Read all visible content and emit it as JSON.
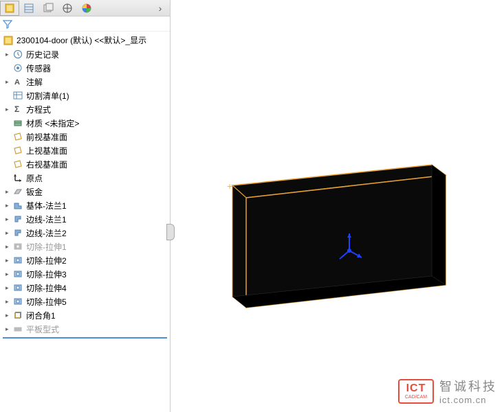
{
  "root": {
    "label": "2300104-door (默认) <<默认>_显示"
  },
  "items": [
    {
      "label": "历史记录",
      "icon": "history",
      "expandable": true
    },
    {
      "label": "传感器",
      "icon": "sensor",
      "expandable": false
    },
    {
      "label": "注解",
      "icon": "annotation",
      "expandable": true
    },
    {
      "label": "切割清单(1)",
      "icon": "cutlist",
      "expandable": false
    },
    {
      "label": "方程式",
      "icon": "equation",
      "expandable": true
    },
    {
      "label": "材质 <未指定>",
      "icon": "material",
      "expandable": false
    },
    {
      "label": "前视基准面",
      "icon": "plane",
      "expandable": false
    },
    {
      "label": "上视基准面",
      "icon": "plane",
      "expandable": false
    },
    {
      "label": "右视基准面",
      "icon": "plane",
      "expandable": false
    },
    {
      "label": "原点",
      "icon": "origin",
      "expandable": false
    },
    {
      "label": "钣金",
      "icon": "sheetmetal",
      "expandable": true
    },
    {
      "label": "基体-法兰1",
      "icon": "baseflange",
      "expandable": true
    },
    {
      "label": "边线-法兰1",
      "icon": "edgeflange",
      "expandable": true
    },
    {
      "label": "边线-法兰2",
      "icon": "edgeflange",
      "expandable": true
    },
    {
      "label": "切除-拉伸1",
      "icon": "cut",
      "expandable": true,
      "disabled": true
    },
    {
      "label": "切除-拉伸2",
      "icon": "cut",
      "expandable": true
    },
    {
      "label": "切除-拉伸3",
      "icon": "cut",
      "expandable": true
    },
    {
      "label": "切除-拉伸4",
      "icon": "cut",
      "expandable": true
    },
    {
      "label": "切除-拉伸5",
      "icon": "cut",
      "expandable": true
    },
    {
      "label": "闭合角1",
      "icon": "corner",
      "expandable": true
    },
    {
      "label": "平板型式",
      "icon": "flatpattern",
      "expandable": true,
      "disabled": true
    }
  ],
  "watermark": {
    "logo_main": "ICT",
    "logo_sub": "CAD/CAM",
    "cn": "智诚科技",
    "url": "ict.com.cn"
  },
  "colors": {
    "model_fill": "#0a0a0a",
    "model_edge": "#e8a030",
    "triad_color": "#2040ff"
  }
}
